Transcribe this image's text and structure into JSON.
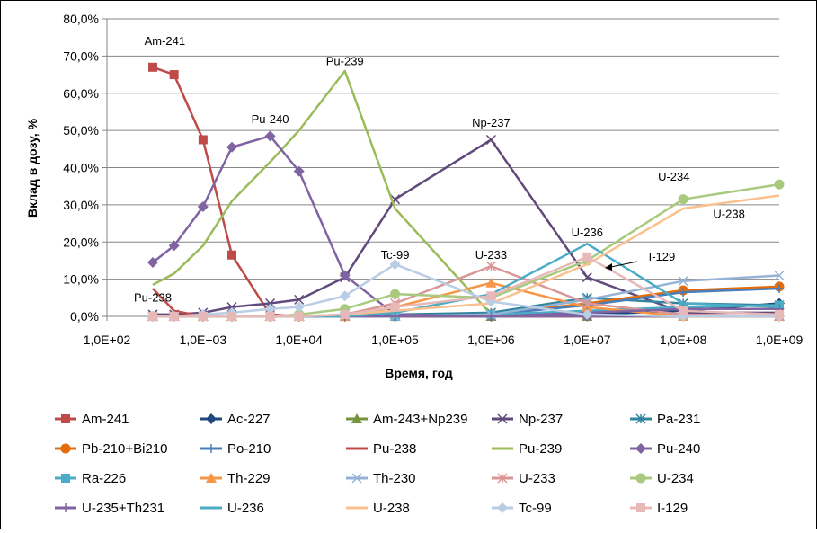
{
  "chart_data": {
    "type": "line",
    "xlabel": "Время, год",
    "ylabel": "Вклад в дозу, %",
    "xscale": "log",
    "xlim": [
      100,
      1000000000
    ],
    "ylim": [
      0,
      80
    ],
    "x_tick_labels": [
      "1,0E+02",
      "1,0E+03",
      "1,0E+04",
      "1,0E+05",
      "1,0E+06",
      "1,0E+07",
      "1,0E+08",
      "1,0E+09"
    ],
    "y_tick_labels": [
      "0,0%",
      "10,0%",
      "20,0%",
      "30,0%",
      "40,0%",
      "50,0%",
      "60,0%",
      "70,0%",
      "80,0%"
    ],
    "grid": "horizontal",
    "legend": "bottom",
    "annotations": [
      {
        "text": "Am-241",
        "x": 400,
        "y": 73
      },
      {
        "text": "Pu-240",
        "x": 5000,
        "y": 52
      },
      {
        "text": "Pu-239",
        "x": 30000,
        "y": 67.5
      },
      {
        "text": "Np-237",
        "x": 1000000,
        "y": 51
      },
      {
        "text": "Tc-99",
        "x": 100000,
        "y": 15.5
      },
      {
        "text": "U-233",
        "x": 1000000,
        "y": 15.5
      },
      {
        "text": "U-236",
        "x": 10000000,
        "y": 21.5
      },
      {
        "text": "I-129",
        "x": 60000000,
        "y": 15
      },
      {
        "text": "U-234",
        "x": 80000000,
        "y": 36.5
      },
      {
        "text": "U-238",
        "x": 300000000,
        "y": 26.5
      },
      {
        "text": "Pu-238",
        "x": 300,
        "y": 4
      }
    ],
    "series": [
      {
        "name": "Am-241",
        "color": "#BE4B48",
        "marker": "square",
        "x": [
          300,
          500,
          1000,
          2000,
          5000,
          10000,
          30000,
          100000,
          1000000,
          10000000,
          100000000,
          1000000000
        ],
        "values": [
          67,
          65,
          47.5,
          16.5,
          0.5,
          0,
          0,
          0,
          0,
          0,
          0,
          0
        ]
      },
      {
        "name": "Ac-227",
        "color": "#1F497D",
        "marker": "diamond",
        "x": [
          300,
          500,
          1000,
          2000,
          5000,
          10000,
          30000,
          100000,
          1000000,
          10000000,
          100000000,
          1000000000
        ],
        "values": [
          0,
          0,
          0,
          0,
          0,
          0,
          0,
          0,
          0,
          0.5,
          1.5,
          3.5
        ]
      },
      {
        "name": "Am-243+Np239",
        "color": "#77933C",
        "marker": "triangle",
        "x": [
          300,
          500,
          1000,
          2000,
          5000,
          10000,
          30000,
          100000,
          1000000,
          10000000,
          100000000,
          1000000000
        ],
        "values": [
          0,
          0,
          0,
          0,
          0,
          0,
          0,
          0,
          0,
          0,
          0,
          0
        ]
      },
      {
        "name": "Np-237",
        "color": "#604A7B",
        "marker": "x",
        "x": [
          300,
          500,
          1000,
          2000,
          5000,
          10000,
          30000,
          100000,
          1000000,
          10000000,
          100000000,
          1000000000
        ],
        "values": [
          0.5,
          0.5,
          1,
          2.5,
          3.5,
          4.5,
          10.5,
          31.5,
          47.5,
          10.5,
          1,
          1
        ]
      },
      {
        "name": "Pa-231",
        "color": "#31859C",
        "marker": "star",
        "x": [
          300,
          500,
          1000,
          2000,
          5000,
          10000,
          30000,
          100000,
          1000000,
          10000000,
          100000000,
          1000000000
        ],
        "values": [
          0,
          0,
          0,
          0,
          0,
          0,
          0,
          0.5,
          1,
          5,
          3.5,
          3
        ]
      },
      {
        "name": "Pb-210+Bi210",
        "color": "#E46C0A",
        "marker": "circle",
        "x": [
          300,
          500,
          1000,
          2000,
          5000,
          10000,
          30000,
          100000,
          1000000,
          10000000,
          100000000,
          1000000000
        ],
        "values": [
          0,
          0,
          0,
          0,
          0,
          0,
          0,
          0,
          0.5,
          3.5,
          7,
          8
        ]
      },
      {
        "name": "Po-210",
        "color": "#4A7EBB",
        "marker": "plus",
        "x": [
          300,
          500,
          1000,
          2000,
          5000,
          10000,
          30000,
          100000,
          1000000,
          10000000,
          100000000,
          1000000000
        ],
        "values": [
          0,
          0,
          0,
          0,
          0,
          0,
          0,
          0,
          0.5,
          3,
          6.5,
          7.5
        ]
      },
      {
        "name": "Pu-238",
        "color": "#BE4B48",
        "marker": "dash",
        "x": [
          300,
          500,
          1000,
          2000,
          5000,
          10000,
          30000,
          100000,
          1000000,
          10000000,
          100000000,
          1000000000
        ],
        "values": [
          7.5,
          1.5,
          0,
          0,
          0,
          0,
          0,
          0,
          0,
          0,
          0,
          0
        ]
      },
      {
        "name": "Pu-239",
        "color": "#9BBB59",
        "marker": "dash",
        "x": [
          300,
          500,
          1000,
          2000,
          5000,
          10000,
          30000,
          100000,
          1000000,
          10000000,
          100000000,
          1000000000
        ],
        "values": [
          8.5,
          11.5,
          19,
          31,
          41.5,
          50,
          66,
          29,
          0.5,
          0,
          0,
          0
        ]
      },
      {
        "name": "Pu-240",
        "color": "#8064A2",
        "marker": "diamond",
        "x": [
          300,
          500,
          1000,
          2000,
          5000,
          10000,
          30000,
          100000,
          1000000,
          10000000,
          100000000,
          1000000000
        ],
        "values": [
          14.5,
          19,
          29.5,
          45.5,
          48.5,
          39,
          11,
          0.5,
          0,
          0,
          0,
          0
        ]
      },
      {
        "name": "Ra-226",
        "color": "#4BACC6",
        "marker": "square",
        "x": [
          300,
          500,
          1000,
          2000,
          5000,
          10000,
          30000,
          100000,
          1000000,
          10000000,
          100000000,
          1000000000
        ],
        "values": [
          0,
          0,
          0,
          0,
          0,
          0,
          0,
          0,
          0.5,
          1.5,
          2.5,
          3
        ]
      },
      {
        "name": "Th-229",
        "color": "#F79646",
        "marker": "triangle",
        "x": [
          300,
          500,
          1000,
          2000,
          5000,
          10000,
          30000,
          100000,
          1000000,
          10000000,
          100000000,
          1000000000
        ],
        "values": [
          0,
          0,
          0,
          0,
          0,
          0,
          0,
          2.5,
          9,
          2.5,
          0,
          0
        ]
      },
      {
        "name": "Th-230",
        "color": "#95B3D7",
        "marker": "x",
        "x": [
          300,
          500,
          1000,
          2000,
          5000,
          10000,
          30000,
          100000,
          1000000,
          10000000,
          100000000,
          1000000000
        ],
        "values": [
          0,
          0,
          0,
          0,
          0,
          0,
          0,
          0,
          0.5,
          4.5,
          9.5,
          11
        ]
      },
      {
        "name": "U-233",
        "color": "#D99694",
        "marker": "star",
        "x": [
          300,
          500,
          1000,
          2000,
          5000,
          10000,
          30000,
          100000,
          1000000,
          10000000,
          100000000,
          1000000000
        ],
        "values": [
          0,
          0,
          0,
          0,
          0,
          0,
          0.5,
          3.5,
          13.5,
          3.5,
          0.5,
          0
        ]
      },
      {
        "name": "U-234",
        "color": "#A9C97F",
        "marker": "circle",
        "x": [
          300,
          500,
          1000,
          2000,
          5000,
          10000,
          30000,
          100000,
          1000000,
          10000000,
          100000000,
          1000000000
        ],
        "values": [
          0,
          0,
          0,
          0,
          0,
          0.5,
          2,
          6,
          5,
          15,
          31.5,
          35.5
        ]
      },
      {
        "name": "U-235+Th231",
        "color": "#8064A2",
        "marker": "plus",
        "x": [
          300,
          500,
          1000,
          2000,
          5000,
          10000,
          30000,
          100000,
          1000000,
          10000000,
          100000000,
          1000000000
        ],
        "values": [
          0,
          0,
          0,
          0,
          0,
          0,
          0,
          0,
          0,
          1,
          2,
          2
        ]
      },
      {
        "name": "U-236",
        "color": "#4BACC6",
        "marker": "dash",
        "x": [
          300,
          500,
          1000,
          2000,
          5000,
          10000,
          30000,
          100000,
          1000000,
          10000000,
          100000000,
          1000000000
        ],
        "values": [
          0,
          0,
          0,
          0,
          0,
          0,
          0,
          1,
          6,
          19.5,
          3.5,
          2.5
        ]
      },
      {
        "name": "U-238",
        "color": "#FAC090",
        "marker": "dash",
        "x": [
          300,
          500,
          1000,
          2000,
          5000,
          10000,
          30000,
          100000,
          1000000,
          10000000,
          100000000,
          1000000000
        ],
        "values": [
          0,
          0,
          0,
          0,
          0,
          0,
          0.5,
          1.5,
          3.5,
          14,
          29,
          32.5
        ]
      },
      {
        "name": "Tc-99",
        "color": "#B9CDE5",
        "marker": "diamond",
        "x": [
          300,
          500,
          1000,
          2000,
          5000,
          10000,
          30000,
          100000,
          1000000,
          10000000,
          100000000,
          1000000000
        ],
        "values": [
          0,
          0,
          0.5,
          1,
          2,
          2.5,
          5.5,
          14,
          4,
          0.5,
          0,
          0
        ]
      },
      {
        "name": "I-129",
        "color": "#E6B9B8",
        "marker": "square",
        "x": [
          300,
          500,
          1000,
          2000,
          5000,
          10000,
          30000,
          100000,
          1000000,
          10000000,
          100000000,
          1000000000
        ],
        "values": [
          0,
          0,
          0,
          0,
          0,
          0,
          0.5,
          2.5,
          5.5,
          16,
          1.5,
          0.5
        ]
      }
    ]
  }
}
